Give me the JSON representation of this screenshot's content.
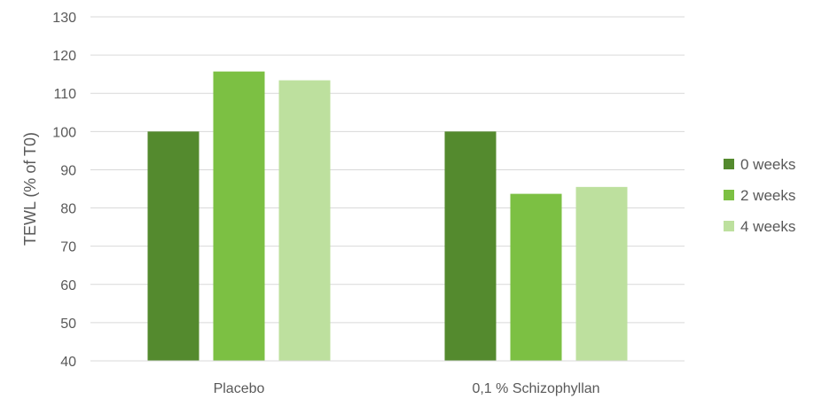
{
  "chart_data": {
    "type": "bar",
    "title": "",
    "xlabel": "",
    "ylabel": "TEWL (% of T0)",
    "ylim": [
      40,
      130
    ],
    "yticks": [
      40,
      50,
      60,
      70,
      80,
      90,
      100,
      110,
      120,
      130
    ],
    "grid": true,
    "legend_position": "right",
    "categories": [
      "Placebo",
      "0,1 % Schizophyllan"
    ],
    "series": [
      {
        "name": "0 weeks",
        "values": [
          100,
          100
        ],
        "color": "#548a2e"
      },
      {
        "name": "2 weeks",
        "values": [
          115.7,
          83.7
        ],
        "color": "#7cc043"
      },
      {
        "name": "4 weeks",
        "values": [
          113.4,
          85.5
        ],
        "color": "#bde09e"
      }
    ]
  }
}
